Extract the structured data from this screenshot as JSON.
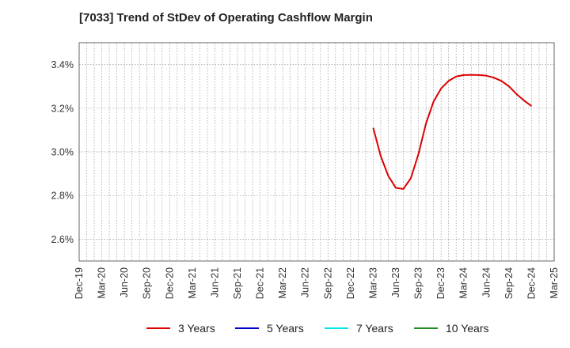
{
  "chart_data": {
    "type": "line",
    "title": "[7033]  Trend of StDev of Operating Cashflow Margin",
    "xlabel": "",
    "ylabel": "",
    "ylim": [
      2.5,
      3.5
    ],
    "yticks": [
      2.6,
      2.8,
      3.0,
      3.2,
      3.4
    ],
    "ytick_labels": [
      "2.6%",
      "2.8%",
      "3.0%",
      "3.2%",
      "3.4%"
    ],
    "x_tick_labels": [
      "Dec-19",
      "Mar-20",
      "Jun-20",
      "Sep-20",
      "Dec-20",
      "Mar-21",
      "Jun-21",
      "Sep-21",
      "Dec-21",
      "Mar-22",
      "Jun-22",
      "Sep-22",
      "Dec-22",
      "Mar-23",
      "Jun-23",
      "Sep-23",
      "Dec-23",
      "Mar-24",
      "Jun-24",
      "Sep-24",
      "Dec-24",
      "Mar-25"
    ],
    "grid": true,
    "legend_position": "bottom",
    "series": [
      {
        "name": "3 Years",
        "color": "#dd0000",
        "x": [
          "Mar-23",
          "Apr-23",
          "May-23",
          "Jun-23",
          "Jul-23",
          "Aug-23",
          "Sep-23",
          "Oct-23",
          "Nov-23",
          "Dec-23",
          "Jan-24",
          "Feb-24",
          "Mar-24",
          "Apr-24",
          "May-24",
          "Jun-24",
          "Jul-24",
          "Aug-24",
          "Sep-24",
          "Oct-24",
          "Nov-24",
          "Dec-24"
        ],
        "values": [
          3.11,
          2.98,
          2.89,
          2.835,
          2.83,
          2.88,
          2.99,
          3.13,
          3.23,
          3.29,
          3.325,
          3.345,
          3.352,
          3.353,
          3.352,
          3.349,
          3.34,
          3.325,
          3.3,
          3.265,
          3.235,
          3.21
        ]
      },
      {
        "name": "5 Years",
        "color": "#0000cc",
        "x": [],
        "values": []
      },
      {
        "name": "7 Years",
        "color": "#00e5ee",
        "x": [],
        "values": []
      },
      {
        "name": "10 Years",
        "color": "#228b22",
        "x": [],
        "values": []
      }
    ]
  }
}
